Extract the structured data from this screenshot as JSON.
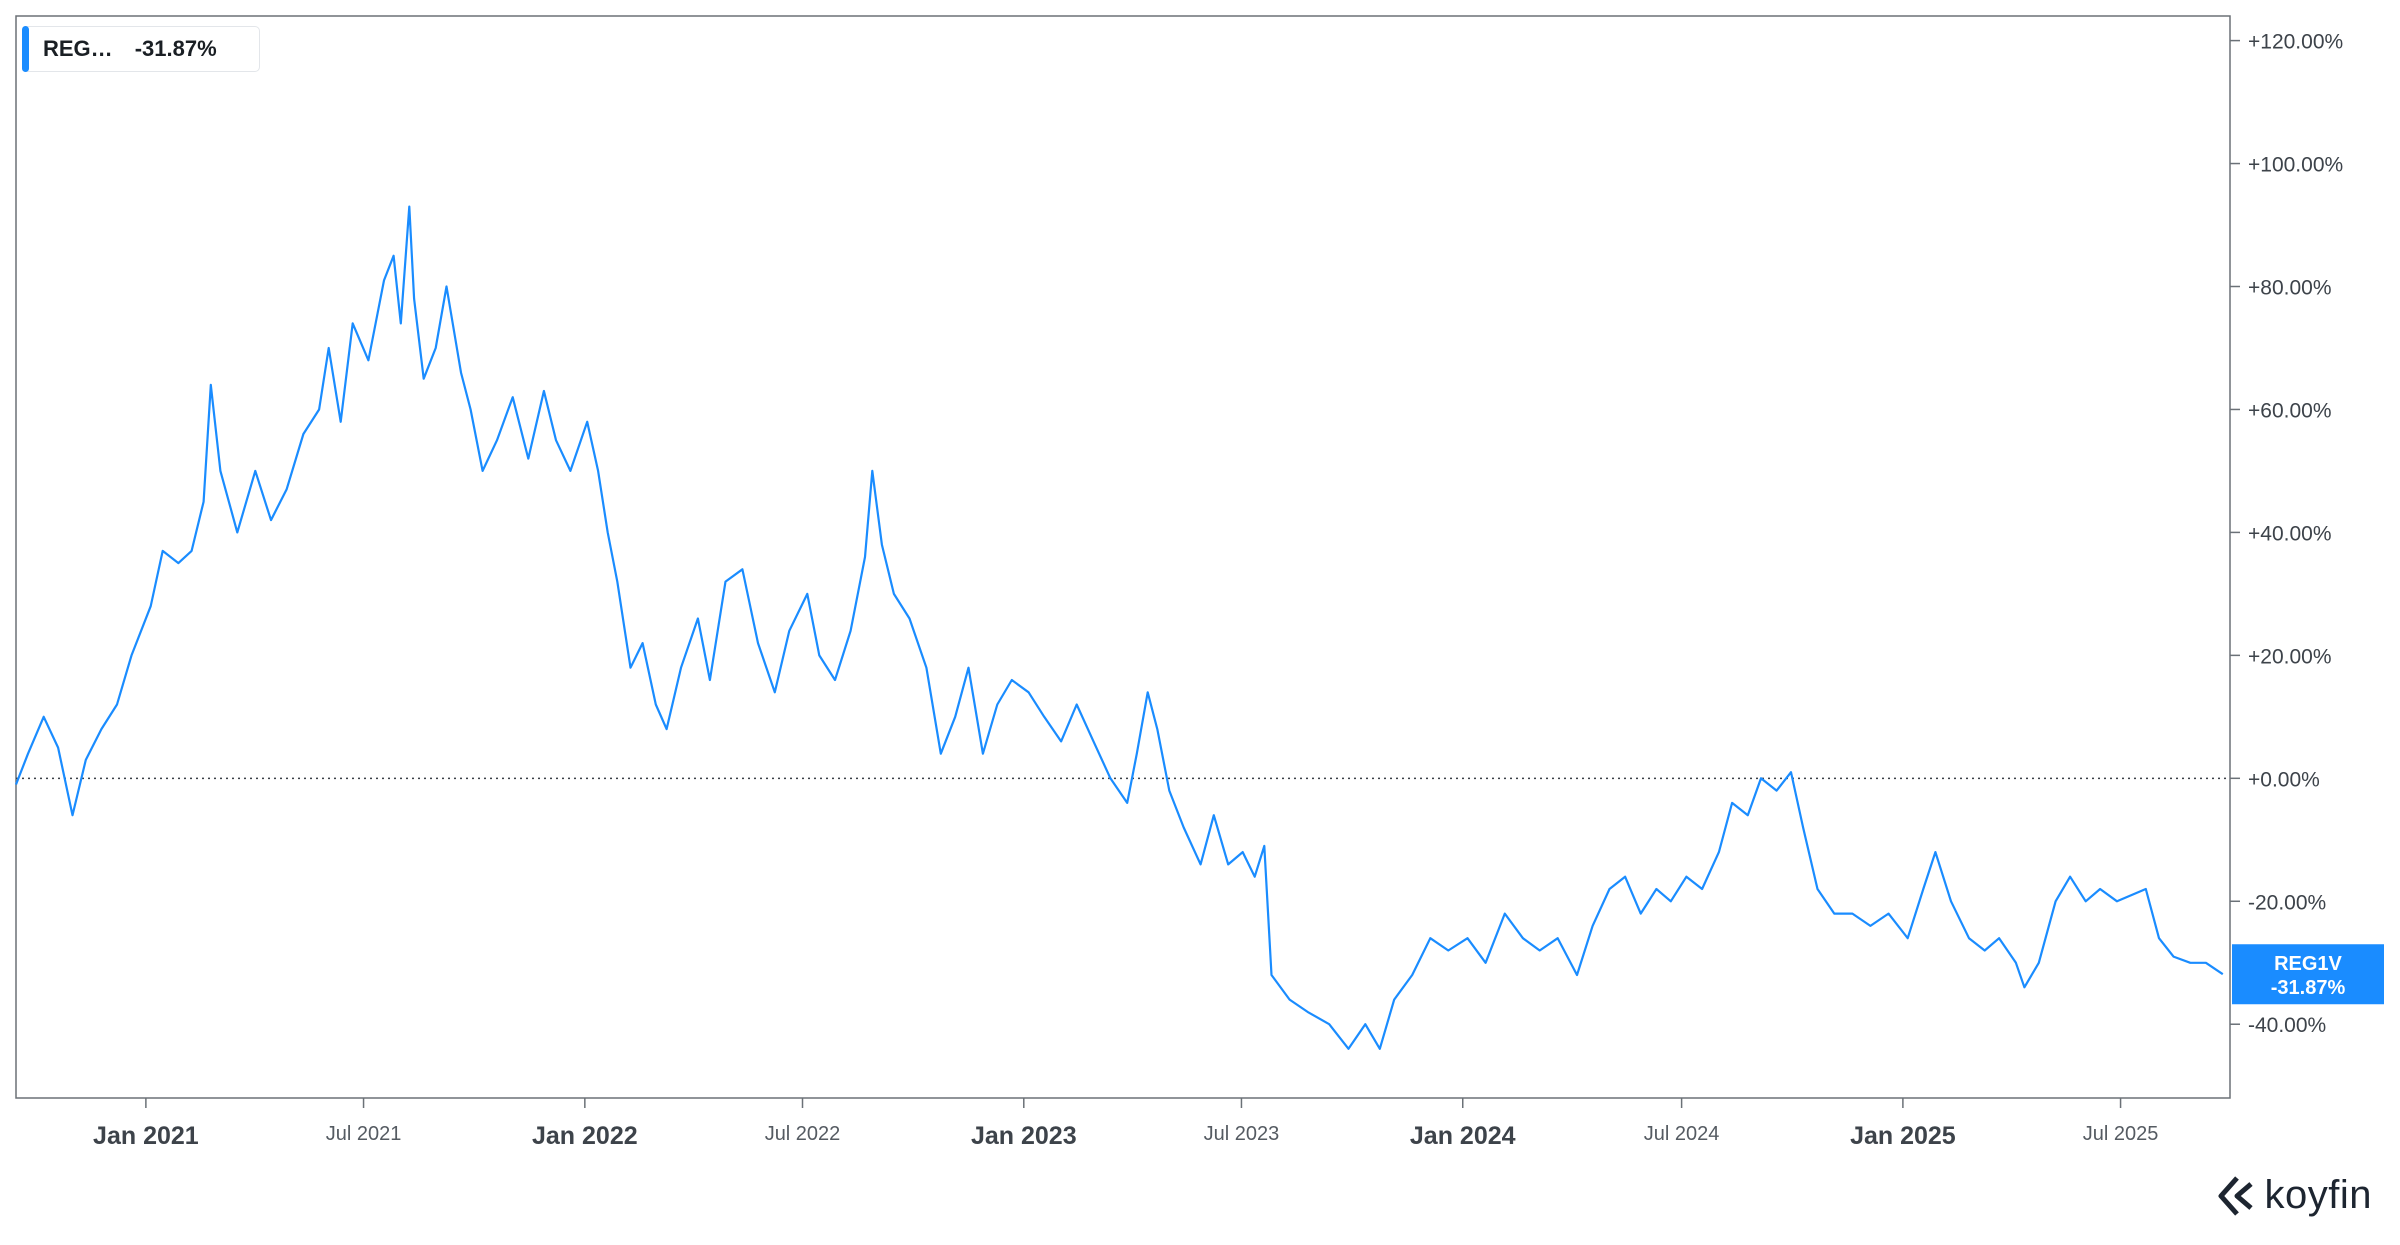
{
  "legend": {
    "name": "REG…",
    "value": "-31.87%",
    "color": "#1a8cff"
  },
  "last_badge": {
    "ticker": "REG1V",
    "value": "-31.87%",
    "color": "#1a8cff"
  },
  "watermark": {
    "brand": "koyfin"
  },
  "chart_data": {
    "type": "line",
    "title": "",
    "xlabel": "",
    "ylabel": "",
    "x_range": [
      "2020-09-15",
      "2025-09-30"
    ],
    "ylim": [
      -52,
      124
    ],
    "y_ticks": [
      {
        "value": 120,
        "label": "+120.00%"
      },
      {
        "value": 100,
        "label": "+100.00%"
      },
      {
        "value": 80,
        "label": "+80.00%"
      },
      {
        "value": 60,
        "label": "+60.00%"
      },
      {
        "value": 40,
        "label": "+40.00%"
      },
      {
        "value": 20,
        "label": "+20.00%"
      },
      {
        "value": 0,
        "label": "+0.00%"
      },
      {
        "value": -20,
        "label": "-20.00%"
      },
      {
        "value": -40,
        "label": "-40.00%"
      }
    ],
    "x_ticks": [
      {
        "date": "2021-01-01",
        "label": "Jan 2021",
        "major": true
      },
      {
        "date": "2021-07-01",
        "label": "Jul 2021",
        "major": false
      },
      {
        "date": "2022-01-01",
        "label": "Jan 2022",
        "major": true
      },
      {
        "date": "2022-07-01",
        "label": "Jul 2022",
        "major": false
      },
      {
        "date": "2023-01-01",
        "label": "Jan 2023",
        "major": true
      },
      {
        "date": "2023-07-01",
        "label": "Jul 2023",
        "major": false
      },
      {
        "date": "2024-01-01",
        "label": "Jan 2024",
        "major": true
      },
      {
        "date": "2024-07-01",
        "label": "Jul 2024",
        "major": false
      },
      {
        "date": "2025-01-01",
        "label": "Jan 2025",
        "major": true
      },
      {
        "date": "2025-07-01",
        "label": "Jul 2025",
        "major": false
      }
    ],
    "zero_line": 0,
    "series": [
      {
        "name": "REG1V",
        "color": "#1a8cff",
        "points": [
          [
            "2020-09-15",
            -1
          ],
          [
            "2020-09-25",
            4
          ],
          [
            "2020-10-08",
            10
          ],
          [
            "2020-10-20",
            5
          ],
          [
            "2020-11-01",
            -6
          ],
          [
            "2020-11-12",
            3
          ],
          [
            "2020-11-25",
            8
          ],
          [
            "2020-12-08",
            12
          ],
          [
            "2020-12-20",
            20
          ],
          [
            "2021-01-05",
            28
          ],
          [
            "2021-01-15",
            37
          ],
          [
            "2021-01-28",
            35
          ],
          [
            "2021-02-08",
            37
          ],
          [
            "2021-02-18",
            45
          ],
          [
            "2021-02-24",
            64
          ],
          [
            "2021-03-04",
            50
          ],
          [
            "2021-03-18",
            40
          ],
          [
            "2021-04-02",
            50
          ],
          [
            "2021-04-15",
            42
          ],
          [
            "2021-04-28",
            47
          ],
          [
            "2021-05-12",
            56
          ],
          [
            "2021-05-25",
            60
          ],
          [
            "2021-06-02",
            70
          ],
          [
            "2021-06-12",
            58
          ],
          [
            "2021-06-22",
            74
          ],
          [
            "2021-07-05",
            68
          ],
          [
            "2021-07-18",
            81
          ],
          [
            "2021-07-26",
            85
          ],
          [
            "2021-08-01",
            74
          ],
          [
            "2021-08-08",
            93
          ],
          [
            "2021-08-12",
            78
          ],
          [
            "2021-08-20",
            65
          ],
          [
            "2021-08-30",
            70
          ],
          [
            "2021-09-08",
            80
          ],
          [
            "2021-09-20",
            66
          ],
          [
            "2021-09-28",
            60
          ],
          [
            "2021-10-08",
            50
          ],
          [
            "2021-10-20",
            55
          ],
          [
            "2021-11-02",
            62
          ],
          [
            "2021-11-15",
            52
          ],
          [
            "2021-11-28",
            63
          ],
          [
            "2021-12-08",
            55
          ],
          [
            "2021-12-20",
            50
          ],
          [
            "2022-01-03",
            58
          ],
          [
            "2022-01-12",
            50
          ],
          [
            "2022-01-20",
            40
          ],
          [
            "2022-01-28",
            32
          ],
          [
            "2022-02-08",
            18
          ],
          [
            "2022-02-18",
            22
          ],
          [
            "2022-03-01",
            12
          ],
          [
            "2022-03-10",
            8
          ],
          [
            "2022-03-22",
            18
          ],
          [
            "2022-04-05",
            26
          ],
          [
            "2022-04-15",
            16
          ],
          [
            "2022-04-28",
            32
          ],
          [
            "2022-05-12",
            34
          ],
          [
            "2022-05-25",
            22
          ],
          [
            "2022-06-08",
            14
          ],
          [
            "2022-06-20",
            24
          ],
          [
            "2022-07-05",
            30
          ],
          [
            "2022-07-15",
            20
          ],
          [
            "2022-07-28",
            16
          ],
          [
            "2022-08-10",
            24
          ],
          [
            "2022-08-22",
            36
          ],
          [
            "2022-08-28",
            50
          ],
          [
            "2022-09-05",
            38
          ],
          [
            "2022-09-15",
            30
          ],
          [
            "2022-09-28",
            26
          ],
          [
            "2022-10-12",
            18
          ],
          [
            "2022-10-24",
            4
          ],
          [
            "2022-11-05",
            10
          ],
          [
            "2022-11-16",
            18
          ],
          [
            "2022-11-28",
            4
          ],
          [
            "2022-12-10",
            12
          ],
          [
            "2022-12-22",
            16
          ],
          [
            "2023-01-05",
            14
          ],
          [
            "2023-01-18",
            10
          ],
          [
            "2023-02-01",
            6
          ],
          [
            "2023-02-14",
            12
          ],
          [
            "2023-02-28",
            6
          ],
          [
            "2023-03-14",
            0
          ],
          [
            "2023-03-28",
            -4
          ],
          [
            "2023-04-05",
            4
          ],
          [
            "2023-04-14",
            14
          ],
          [
            "2023-04-22",
            8
          ],
          [
            "2023-05-02",
            -2
          ],
          [
            "2023-05-14",
            -8
          ],
          [
            "2023-05-28",
            -14
          ],
          [
            "2023-06-08",
            -6
          ],
          [
            "2023-06-20",
            -14
          ],
          [
            "2023-07-02",
            -12
          ],
          [
            "2023-07-12",
            -16
          ],
          [
            "2023-07-20",
            -11
          ],
          [
            "2023-07-26",
            -32
          ],
          [
            "2023-08-10",
            -36
          ],
          [
            "2023-08-25",
            -38
          ],
          [
            "2023-09-12",
            -40
          ],
          [
            "2023-09-28",
            -44
          ],
          [
            "2023-10-12",
            -40
          ],
          [
            "2023-10-24",
            -44
          ],
          [
            "2023-11-05",
            -36
          ],
          [
            "2023-11-20",
            -32
          ],
          [
            "2023-12-05",
            -26
          ],
          [
            "2023-12-20",
            -28
          ],
          [
            "2024-01-05",
            -26
          ],
          [
            "2024-01-20",
            -30
          ],
          [
            "2024-02-05",
            -22
          ],
          [
            "2024-02-20",
            -26
          ],
          [
            "2024-03-05",
            -28
          ],
          [
            "2024-03-20",
            -26
          ],
          [
            "2024-04-05",
            -32
          ],
          [
            "2024-04-18",
            -24
          ],
          [
            "2024-05-02",
            -18
          ],
          [
            "2024-05-15",
            -16
          ],
          [
            "2024-05-28",
            -22
          ],
          [
            "2024-06-10",
            -18
          ],
          [
            "2024-06-22",
            -20
          ],
          [
            "2024-07-05",
            -16
          ],
          [
            "2024-07-18",
            -18
          ],
          [
            "2024-08-01",
            -12
          ],
          [
            "2024-08-12",
            -4
          ],
          [
            "2024-08-25",
            -6
          ],
          [
            "2024-09-05",
            0
          ],
          [
            "2024-09-18",
            -2
          ],
          [
            "2024-09-30",
            1
          ],
          [
            "2024-10-10",
            -8
          ],
          [
            "2024-10-22",
            -18
          ],
          [
            "2024-11-05",
            -22
          ],
          [
            "2024-11-20",
            -22
          ],
          [
            "2024-12-05",
            -24
          ],
          [
            "2024-12-20",
            -22
          ],
          [
            "2025-01-05",
            -26
          ],
          [
            "2025-01-18",
            -18
          ],
          [
            "2025-01-28",
            -12
          ],
          [
            "2025-02-10",
            -20
          ],
          [
            "2025-02-25",
            -26
          ],
          [
            "2025-03-10",
            -28
          ],
          [
            "2025-03-22",
            -26
          ],
          [
            "2025-04-05",
            -30
          ],
          [
            "2025-04-12",
            -34
          ],
          [
            "2025-04-24",
            -30
          ],
          [
            "2025-05-08",
            -20
          ],
          [
            "2025-05-20",
            -16
          ],
          [
            "2025-06-02",
            -20
          ],
          [
            "2025-06-14",
            -18
          ],
          [
            "2025-06-28",
            -20
          ],
          [
            "2025-07-10",
            -19
          ],
          [
            "2025-07-22",
            -18
          ],
          [
            "2025-08-02",
            -26
          ],
          [
            "2025-08-14",
            -29
          ],
          [
            "2025-08-28",
            -30
          ],
          [
            "2025-09-10",
            -30
          ],
          [
            "2025-09-24",
            -31.87
          ]
        ]
      }
    ]
  }
}
